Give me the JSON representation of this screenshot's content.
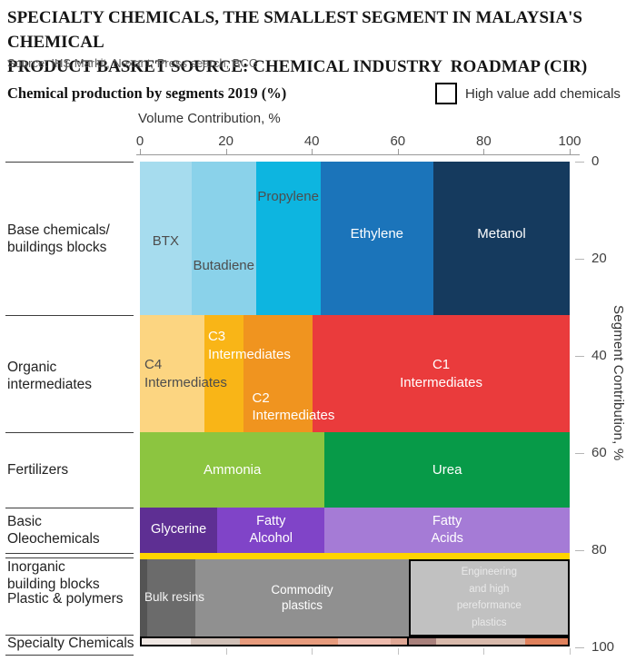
{
  "header": {
    "title": "SPECIALTY CHEMICALS, THE SMALLEST SEGMENT IN MALAYSIA'S  CHEMICAL\nPRODUCT BASKET SOURCE: CHEMICAL INDUSTRY  ROADMAP (CIR)",
    "source": "Source: IHS Markit, Nexant, Press search, BCG"
  },
  "chart_header": {
    "title": "Chemical production by segments 2019 (%)",
    "legend": {
      "label": "High value add chemicals",
      "swatch": "black-outlined-square"
    }
  },
  "axes": {
    "x_title": "Volume Contribution, %",
    "x_ticks": [
      0,
      20,
      40,
      60,
      80,
      100
    ],
    "y_title": "Segment Contribution, %",
    "y_ticks": [
      0,
      20,
      40,
      60,
      80,
      100
    ]
  },
  "chart_data": {
    "type": "heatmap",
    "subtype": "marimekko-mosaic",
    "title": "Chemical production by segments 2019 (%)",
    "xlabel": "Volume Contribution, %",
    "ylabel": "Segment Contribution, %",
    "x_range": [
      0,
      100
    ],
    "y_range": [
      0,
      100
    ],
    "y_direction": "top-down",
    "legend": [
      {
        "label": "High value add chemicals",
        "style": "black outlined box"
      }
    ],
    "rows": [
      {
        "id": "base-chemicals",
        "label": "Base chemicals/\nbuildings blocks",
        "segment_share": 31.6,
        "blocks": [
          {
            "id": "btx",
            "label": "BTX",
            "volume_share": 12,
            "color": "#a6dcee",
            "text_color": "#4d4d4d"
          },
          {
            "id": "butadiene",
            "label": "Butadiene",
            "volume_share": 15,
            "color": "#8ad2ea",
            "text_color": "#4d4d4d"
          },
          {
            "id": "propylene",
            "label": "Propylene",
            "volume_share": 15,
            "color": "#0db5e0",
            "text_color": "#4d4d4d"
          },
          {
            "id": "ethylene",
            "label": "Ethylene",
            "volume_share": 26.3,
            "color": "#1b74ba",
            "text_color": "#ffffff"
          },
          {
            "id": "metanol",
            "label": "Metanol",
            "volume_share": 31.7,
            "color": "#153a5e",
            "text_color": "#ffffff"
          }
        ]
      },
      {
        "id": "organic-intermediates",
        "label": "Organic\nintermediates",
        "segment_share": 24.1,
        "blocks": [
          {
            "id": "c4",
            "label": "C4\nIntermediates",
            "volume_share": 15,
            "color": "#fcd581",
            "text_color": "#4d4d4d"
          },
          {
            "id": "c3",
            "label": "C3\nIntermediates",
            "volume_share": 9,
            "color": "#f9b517",
            "text_color": "#ffffff"
          },
          {
            "id": "c2",
            "label": "C2\nIntermediates",
            "volume_share": 16.2,
            "color": "#f0941f",
            "text_color": "#ffffff"
          },
          {
            "id": "c1",
            "label": "C1\nIntermediates",
            "volume_share": 59.8,
            "color": "#ea3b3c",
            "text_color": "#ffffff"
          }
        ]
      },
      {
        "id": "fertilizers",
        "label": "Fertilizers",
        "segment_share": 15.5,
        "blocks": [
          {
            "id": "ammonia",
            "label": "Ammonia",
            "volume_share": 43,
            "color": "#8cc540",
            "text_color": "#ffffff"
          },
          {
            "id": "urea",
            "label": "Urea",
            "volume_share": 57,
            "color": "#079a48",
            "text_color": "#ffffff"
          }
        ]
      },
      {
        "id": "basic-oleochemicals",
        "label": "Basic\nOleochemicals",
        "segment_share": 9.3,
        "blocks": [
          {
            "id": "glycerine",
            "label": "Glycerine",
            "volume_share": 18,
            "color": "#5e2f93",
            "text_color": "#ffffff"
          },
          {
            "id": "fatty-alcohol",
            "label": "Fatty\nAlcohol",
            "volume_share": 25,
            "color": "#8044c8",
            "text_color": "#ffffff"
          },
          {
            "id": "fatty-acids",
            "label": "Fatty\nAcids",
            "volume_share": 57,
            "color": "#a57bd6",
            "text_color": "#ffffff"
          }
        ]
      },
      {
        "id": "inorganic-building-blocks",
        "label": "Inorganic\nbuilding blocks",
        "segment_share": 1.3,
        "blocks": [
          {
            "id": "inorganic",
            "label": "",
            "volume_share": 100,
            "color": "#ffd400",
            "text_color": "#000000"
          }
        ]
      },
      {
        "id": "plastics-polymers",
        "label": "Plastic & polymers",
        "segment_share": 15.9,
        "blocks": [
          {
            "id": "bulk-resins",
            "label": "Bulk resins",
            "volume_share": 13,
            "color": "#6b6b6b",
            "text_color": "#f5f5f5"
          },
          {
            "id": "commodity-plastics",
            "label": "Commodity\nplastics",
            "volume_share": 49.5,
            "color": "#909090",
            "text_color": "#ffffff"
          },
          {
            "id": "engineering-plastics",
            "label": "Engineering\nand high\npereformance\nplastics",
            "volume_share": 37.5,
            "color": "#c1c1c1",
            "text_color": "#e9e9e9",
            "high_value": true
          }
        ]
      },
      {
        "id": "specialty-chemicals",
        "label": "Specialty Chemicals",
        "segment_share": 2.2,
        "high_value_outline": true,
        "high_value_divider_at": 62.5,
        "blocks": [
          {
            "id": "sp1",
            "label": "",
            "volume_share": 11.5,
            "color": "#efe7e3",
            "text_color": "#000000"
          },
          {
            "id": "sp2",
            "label": "",
            "volume_share": 11.5,
            "color": "#cfbfb6",
            "text_color": "#000000"
          },
          {
            "id": "sp3",
            "label": "",
            "volume_share": 23,
            "color": "#e79b7d",
            "text_color": "#000000"
          },
          {
            "id": "sp4",
            "label": "",
            "volume_share": 12.5,
            "color": "#eebbad",
            "text_color": "#000000"
          },
          {
            "id": "sp5",
            "label": "",
            "volume_share": 4,
            "color": "#dfa795",
            "text_color": "#000000"
          },
          {
            "id": "sp6",
            "label": "",
            "volume_share": 6.5,
            "color": "#a8807b",
            "text_color": "#000000",
            "high_value": true
          },
          {
            "id": "sp7",
            "label": "",
            "volume_share": 21,
            "color": "#d8b9ab",
            "text_color": "#000000",
            "high_value": true
          },
          {
            "id": "sp8",
            "label": "",
            "volume_share": 10,
            "color": "#e0815c",
            "text_color": "#000000",
            "high_value": true
          }
        ]
      }
    ]
  }
}
